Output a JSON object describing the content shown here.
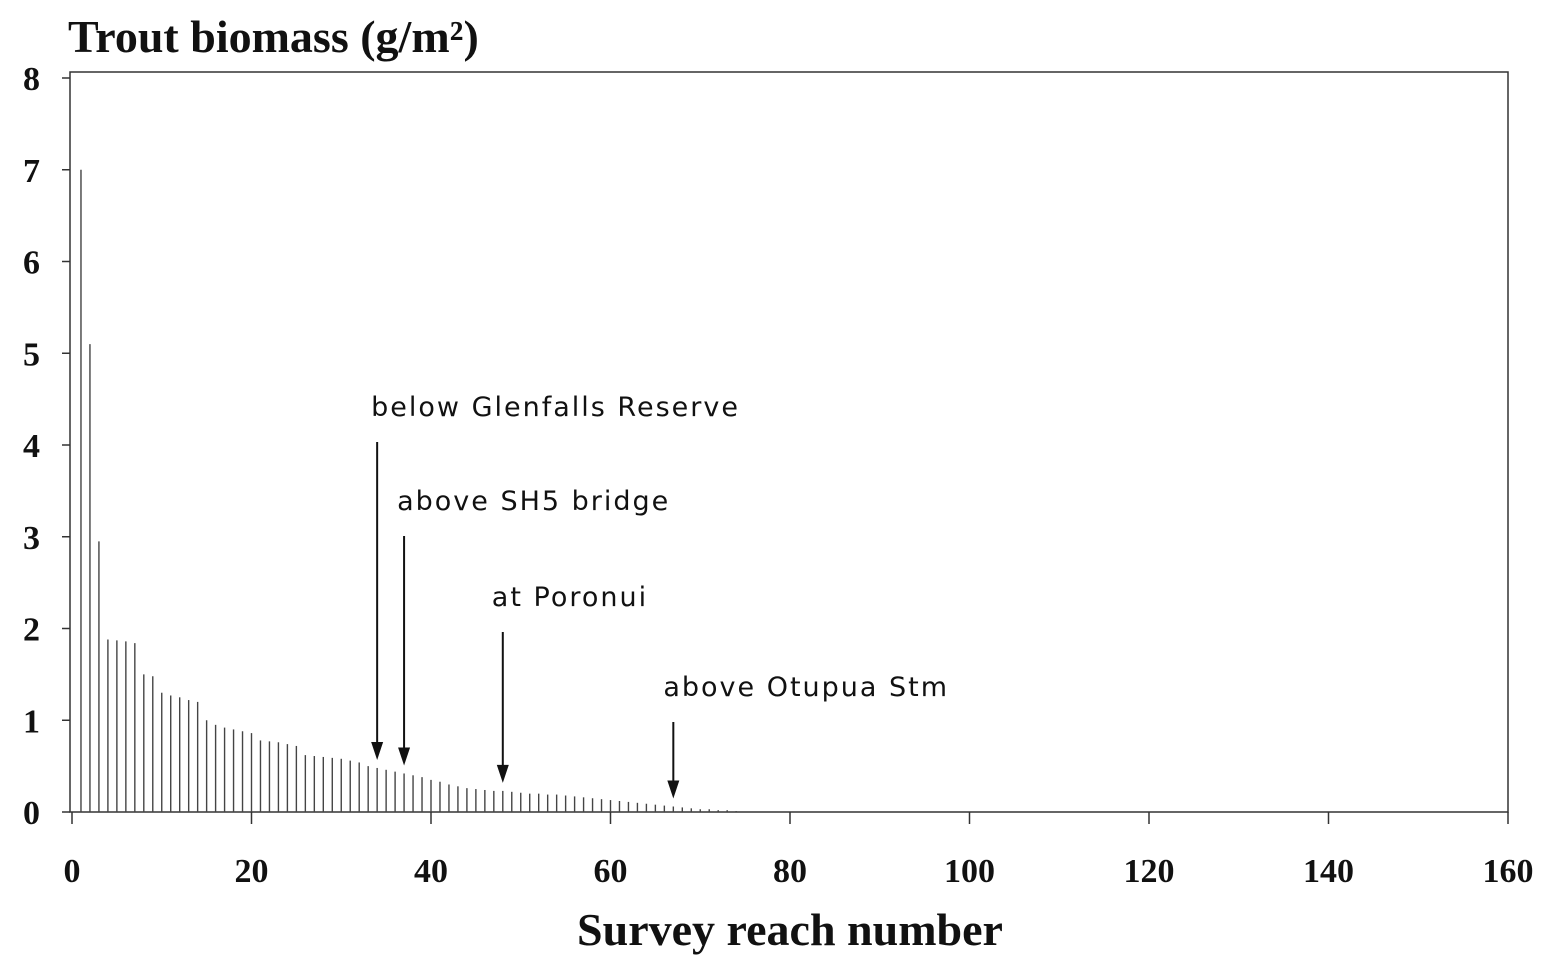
{
  "chart_data": {
    "type": "bar",
    "title": "Trout biomass (g/m²)",
    "x_label": "Survey reach number",
    "x": [
      1,
      2,
      3,
      4,
      5,
      6,
      7,
      8,
      9,
      10,
      11,
      12,
      13,
      14,
      15,
      16,
      17,
      18,
      19,
      20,
      21,
      22,
      23,
      24,
      25,
      26,
      27,
      28,
      29,
      30,
      31,
      32,
      33,
      34,
      35,
      36,
      37,
      38,
      39,
      40,
      41,
      42,
      43,
      44,
      45,
      46,
      47,
      48,
      49,
      50,
      51,
      52,
      53,
      54,
      55,
      56,
      57,
      58,
      59,
      60,
      61,
      62,
      63,
      64,
      65,
      66,
      67,
      68,
      69,
      70,
      71,
      72,
      73,
      74
    ],
    "values": [
      7.0,
      5.1,
      2.95,
      1.88,
      1.87,
      1.86,
      1.84,
      1.5,
      1.48,
      1.3,
      1.27,
      1.25,
      1.22,
      1.2,
      1.0,
      0.95,
      0.92,
      0.9,
      0.88,
      0.86,
      0.78,
      0.77,
      0.76,
      0.74,
      0.72,
      0.62,
      0.61,
      0.6,
      0.59,
      0.58,
      0.56,
      0.54,
      0.5,
      0.48,
      0.46,
      0.44,
      0.42,
      0.4,
      0.38,
      0.35,
      0.33,
      0.3,
      0.28,
      0.26,
      0.25,
      0.24,
      0.23,
      0.23,
      0.22,
      0.21,
      0.2,
      0.2,
      0.19,
      0.19,
      0.18,
      0.17,
      0.16,
      0.15,
      0.14,
      0.13,
      0.12,
      0.11,
      0.1,
      0.09,
      0.08,
      0.07,
      0.06,
      0.05,
      0.04,
      0.03,
      0.03,
      0.02,
      0.02,
      0.01
    ],
    "color": "#444444",
    "xlim": [
      0,
      160
    ],
    "xticks": [
      0,
      20,
      40,
      60,
      80,
      100,
      120,
      140,
      160
    ],
    "ylim": [
      0,
      8
    ],
    "yticks": [
      0,
      1,
      2,
      3,
      4,
      5,
      6,
      7,
      8
    ],
    "annotations": [
      {
        "text": "below Glenfalls Reserve",
        "x": 34
      },
      {
        "text": "above SH5 bridge",
        "x": 37
      },
      {
        "text": "at Poronui",
        "x": 48
      },
      {
        "text": "above Otupua Stm",
        "x": 67
      }
    ]
  }
}
